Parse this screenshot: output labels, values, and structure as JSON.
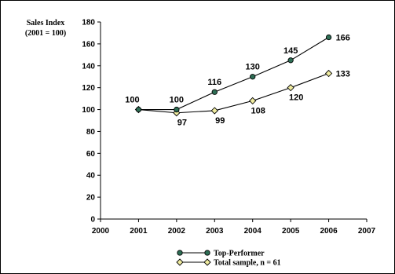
{
  "chart_data": {
    "type": "line",
    "ylabel": [
      "Sales Index",
      "(2001 = 100)"
    ],
    "xlim": [
      2000,
      2007
    ],
    "ylim": [
      0,
      180
    ],
    "x_ticks": [
      2000,
      2001,
      2002,
      2003,
      2004,
      2005,
      2006,
      2007
    ],
    "y_ticks": [
      0,
      20,
      40,
      60,
      80,
      100,
      120,
      140,
      160,
      180
    ],
    "grid": false,
    "legend_position": "bottom-center",
    "series": [
      {
        "name": "Top-Performer",
        "x": [
          2001,
          2002,
          2003,
          2004,
          2005,
          2006
        ],
        "y": [
          100,
          100,
          116,
          130,
          145,
          166
        ],
        "labels": [
          "100",
          "100",
          "116",
          "130",
          "145",
          "166"
        ],
        "marker": "circle",
        "marker_color": "#2e6e55",
        "label_position": "above"
      },
      {
        "name": "Total sample, n = 61",
        "x": [
          2001,
          2002,
          2003,
          2004,
          2005,
          2006
        ],
        "y": [
          100,
          97,
          99,
          108,
          120,
          133
        ],
        "labels": [
          "",
          "97",
          "99",
          "108",
          "120",
          "133"
        ],
        "marker": "diamond",
        "marker_color": "#f0eca0",
        "label_position": "below"
      }
    ]
  }
}
